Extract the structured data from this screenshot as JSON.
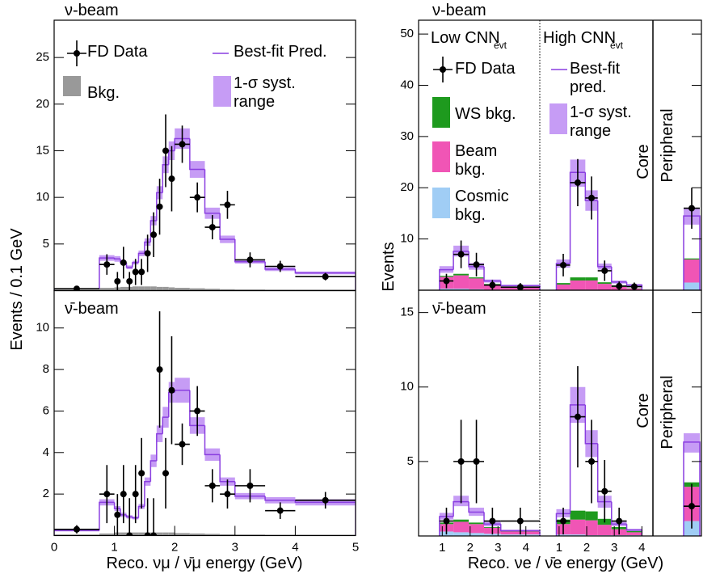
{
  "chart_data": [
    {
      "type": "histogram",
      "label": "ν-beam",
      "ylabel": "Events / 0.1 GeV",
      "bins": [
        0,
        0.75,
        1,
        1.1,
        1.2,
        1.3,
        1.4,
        1.5,
        1.6,
        1.7,
        1.8,
        1.9,
        2,
        2.25,
        2.5,
        2.75,
        3,
        3.5,
        4,
        5
      ],
      "xlim": [
        0,
        5
      ],
      "ylim": [
        0,
        29
      ],
      "yticks": [
        5,
        10,
        15,
        20,
        25
      ],
      "series": [
        {
          "name": "FD Data",
          "style": "points",
          "color": "#000000",
          "values": [
            0.2,
            2.8,
            1,
            3,
            1,
            2,
            2,
            4,
            6,
            9,
            15,
            12,
            15.7,
            10,
            6.8,
            9.2,
            3.3,
            2.6,
            1.5
          ],
          "errors": [
            0.15,
            1.1,
            1.0,
            1.7,
            1.0,
            1.4,
            1.4,
            2.0,
            2.4,
            3.0,
            3.9,
            3.5,
            2.0,
            1.6,
            1.3,
            1.5,
            0.8,
            0.6,
            0.4
          ]
        },
        {
          "name": "Best-fit Pred.",
          "style": "step",
          "color": "#8a3fe0",
          "values": [
            0.2,
            3.5,
            3.4,
            3.0,
            2.5,
            3.0,
            4.0,
            5.2,
            7.5,
            10.5,
            13.5,
            15,
            16.3,
            13,
            8.3,
            5.5,
            3.1,
            2.3,
            1.9
          ]
        },
        {
          "name": "Bkg.",
          "style": "fill",
          "color": "#999999",
          "values": [
            0.1,
            0.3,
            0.35,
            0.4,
            0.4,
            0.45,
            0.45,
            0.45,
            0.45,
            0.4,
            0.4,
            0.35,
            0.3,
            0.25,
            0.2,
            0.15,
            0.12,
            0.1,
            0.1
          ]
        },
        {
          "name": "1-σ syst. range",
          "style": "band",
          "color": "#c69cf5",
          "low": [
            0.15,
            3.2,
            3.1,
            2.8,
            2.3,
            2.8,
            3.7,
            4.8,
            7.0,
            9.8,
            12.6,
            14.0,
            15.2,
            12.1,
            7.7,
            5.1,
            2.9,
            2.1,
            1.75
          ],
          "high": [
            0.25,
            3.8,
            3.7,
            3.2,
            2.7,
            3.2,
            4.3,
            5.6,
            8.0,
            11.2,
            14.4,
            16.0,
            17.4,
            13.9,
            8.9,
            5.9,
            3.3,
            2.5,
            2.05
          ]
        }
      ]
    },
    {
      "type": "histogram",
      "label": "ν̄-beam",
      "xlabel": "Reco. νμ / ν̄μ energy (GeV)",
      "bins": [
        0,
        0.75,
        1,
        1.1,
        1.2,
        1.3,
        1.4,
        1.5,
        1.6,
        1.7,
        1.8,
        1.9,
        2,
        2.25,
        2.5,
        2.75,
        3,
        3.5,
        4,
        5
      ],
      "xlim": [
        0,
        5
      ],
      "xticks": [
        0,
        1,
        2,
        3,
        4,
        5
      ],
      "ylim": [
        0,
        11.8
      ],
      "yticks": [
        2,
        4,
        6,
        8,
        10
      ],
      "series": [
        {
          "style": "points",
          "color": "#000000",
          "values": [
            0.3,
            2,
            1,
            2,
            0,
            2,
            3,
            0,
            0,
            8,
            3,
            7,
            4.4,
            6,
            2.4,
            2,
            2.4,
            1.2,
            1.7
          ],
          "errors": [
            0.2,
            1.4,
            1.0,
            1.4,
            1.8,
            1.4,
            1.7,
            1.8,
            1.8,
            2.8,
            1.7,
            2.6,
            1.0,
            1.2,
            0.8,
            0.7,
            0.8,
            0.4,
            0.4
          ]
        },
        {
          "style": "step",
          "color": "#8a3fe0",
          "values": [
            0.25,
            1.6,
            1.3,
            1.0,
            0.9,
            0.85,
            1.4,
            2.6,
            3.6,
            4.9,
            5.7,
            6.9,
            7.0,
            5.3,
            3.9,
            2.6,
            1.9,
            1.7,
            1.6
          ]
        },
        {
          "style": "fill",
          "color": "#999999",
          "values": [
            0.05,
            0.1,
            0.15,
            0.15,
            0.15,
            0.15,
            0.15,
            0.15,
            0.15,
            0.15,
            0.15,
            0.15,
            0.12,
            0.1,
            0.08,
            0.06,
            0.05,
            0.04,
            0.04
          ]
        },
        {
          "style": "band",
          "color": "#c69cf5",
          "low": [
            0.2,
            1.45,
            1.18,
            0.9,
            0.82,
            0.78,
            1.28,
            2.4,
            3.3,
            4.5,
            5.2,
            6.4,
            6.4,
            4.9,
            3.6,
            2.4,
            1.75,
            1.55,
            1.45
          ],
          "high": [
            0.3,
            1.75,
            1.42,
            1.1,
            0.98,
            0.92,
            1.52,
            2.8,
            3.9,
            5.3,
            6.2,
            7.4,
            7.6,
            5.7,
            4.2,
            2.8,
            2.05,
            1.85,
            1.75
          ]
        }
      ]
    },
    {
      "type": "stacked-histogram",
      "label": "ν-beam",
      "ylabel": "Events",
      "core_label": "Core",
      "ylim": [
        0,
        52.7
      ],
      "yticks": [
        10,
        20,
        30,
        40,
        50
      ],
      "segments": [
        {
          "label": "Low CNN",
          "label_sub": "evt",
          "xlim": [
            0.15,
            4.5
          ],
          "bins": [
            0.9,
            1.4,
            1.95,
            2.5,
            3.1,
            4.5
          ]
        },
        {
          "label": "High CNN",
          "label_sub": "evt",
          "xlim": [
            0.3,
            4.4
          ],
          "bins": [
            0.9,
            1.4,
            1.95,
            2.4,
            2.9,
            3.45,
            4.0
          ]
        },
        {
          "label": "Peripheral"
        }
      ],
      "series": [
        {
          "name": "FD Data",
          "style": "points",
          "color": "#000000",
          "values": [
            [
              1.8,
              7,
              5,
              1,
              0.6
            ],
            [
              4.9,
              21,
              18,
              3.8,
              0.8,
              0.7
            ],
            [
              16
            ]
          ],
          "errors": [
            [
              1.4,
              2.7,
              2.3,
              1,
              0.8
            ],
            [
              2.2,
              4.6,
              4.2,
              2,
              0.9,
              0.8
            ],
            [
              4
            ]
          ]
        },
        {
          "name": "Best-fit pred.",
          "style": "step",
          "color": "#8a3fe0",
          "values": [
            [
              4,
              7.6,
              4.6,
              1.8,
              0.9
            ],
            [
              5.2,
              23,
              17.5,
              4.6,
              1.6,
              1.0
            ],
            [
              14.5
            ]
          ]
        },
        {
          "name": "WS bkg.",
          "style": "stack",
          "color": "#1e9a1e",
          "values": [
            [
              0.2,
              0.3,
              0.2,
              0.1,
              0.05
            ],
            [
              0.3,
              0.6,
              0.6,
              0.3,
              0.1,
              0.05
            ],
            [
              0.2
            ]
          ]
        },
        {
          "name": "1-σ syst. range",
          "style": "band",
          "color": "#c69cf5",
          "low": [
            [
              3.4,
              6.6,
              4.0,
              1.5,
              0.75
            ],
            [
              4.4,
              20.2,
              15.5,
              4.0,
              1.3,
              0.8
            ],
            [
              12.8
            ]
          ],
          "high": [
            [
              4.7,
              8.7,
              5.3,
              2.1,
              1.05
            ],
            [
              6.0,
              25.5,
              19.5,
              5.2,
              1.9,
              1.2
            ],
            [
              16.0
            ]
          ]
        },
        {
          "name": "Beam bkg.",
          "style": "stack",
          "color": "#f055b5",
          "values": [
            [
              2.3,
              2.6,
              2.1,
              1.0,
              0.5
            ],
            [
              1.0,
              1.8,
              1.8,
              1.2,
              0.6,
              0.3
            ],
            [
              4.5
            ]
          ]
        },
        {
          "name": "Cosmic bkg.",
          "style": "stack",
          "color": "#a0cdf5",
          "values": [
            [
              0.3,
              0.3,
              0.2,
              0.1,
              0.1
            ],
            [
              0.1,
              0.1,
              0.1,
              0.05,
              0.05,
              0.05
            ],
            [
              1.5
            ]
          ]
        }
      ]
    },
    {
      "type": "stacked-histogram",
      "label": "ν̄-beam",
      "xlabel": "Reco. νe / ν̄e energy (GeV)",
      "core_label": "Core",
      "ylim": [
        0,
        16.5
      ],
      "yticks": [
        5,
        10,
        15
      ],
      "segments": [
        {
          "xlim": [
            0.15,
            4.5
          ],
          "xticks": [
            1,
            2,
            3,
            4
          ],
          "bins": [
            0.9,
            1.4,
            1.95,
            2.5,
            3.1,
            4.5
          ]
        },
        {
          "xlim": [
            0.3,
            4.4
          ],
          "xticks": [
            1,
            2,
            3,
            4
          ],
          "bins": [
            0.9,
            1.4,
            1.95,
            2.4,
            2.9,
            3.45,
            4.0
          ]
        },
        {
          "label": "Peripheral"
        }
      ],
      "series": [
        {
          "style": "points",
          "color": "#000000",
          "values": [
            [
              1,
              5,
              5,
              1,
              1
            ],
            [
              1,
              8,
              5,
              3,
              1,
              null
            ],
            [
              2
            ]
          ],
          "errors": [
            [
              0.9,
              2.8,
              2.8,
              0.9,
              0.9
            ],
            [
              0.9,
              3.4,
              2.8,
              2.1,
              0.9,
              null
            ],
            [
              1.5
            ]
          ]
        },
        {
          "style": "step",
          "color": "#8a3fe0",
          "values": [
            [
              1.3,
              2.3,
              1.6,
              0.8,
              0.35
            ],
            [
              1.5,
              8.8,
              6.2,
              2.3,
              0.8,
              0.4
            ],
            [
              6.3
            ]
          ]
        },
        {
          "style": "stack",
          "color": "#1e9a1e",
          "values": [
            [
              0.1,
              0.15,
              0.1,
              0.05,
              0.03
            ],
            [
              0.3,
              0.6,
              0.6,
              0.4,
              0.15,
              0.08
            ],
            [
              0.3
            ]
          ]
        },
        {
          "style": "band",
          "color": "#c69cf5",
          "low": [
            [
              1.1,
              2.0,
              1.35,
              0.65,
              0.28
            ],
            [
              1.25,
              7.6,
              5.3,
              1.9,
              0.65,
              0.32
            ],
            [
              5.6
            ]
          ],
          "high": [
            [
              1.55,
              2.7,
              1.9,
              0.95,
              0.42
            ],
            [
              1.8,
              10.0,
              7.1,
              2.7,
              0.95,
              0.48
            ],
            [
              6.9
            ]
          ]
        },
        {
          "style": "stack",
          "color": "#f055b5",
          "values": [
            [
              0.5,
              0.7,
              0.6,
              0.4,
              0.2
            ],
            [
              0.7,
              1.0,
              1.0,
              0.7,
              0.4,
              0.2
            ],
            [
              2.3
            ]
          ]
        },
        {
          "style": "stack",
          "color": "#a0cdf5",
          "values": [
            [
              0.3,
              0.25,
              0.2,
              0.15,
              0.1
            ],
            [
              0.1,
              0.1,
              0.05,
              0.05,
              0.05,
              0.05
            ],
            [
              1.0
            ]
          ]
        }
      ]
    }
  ]
}
